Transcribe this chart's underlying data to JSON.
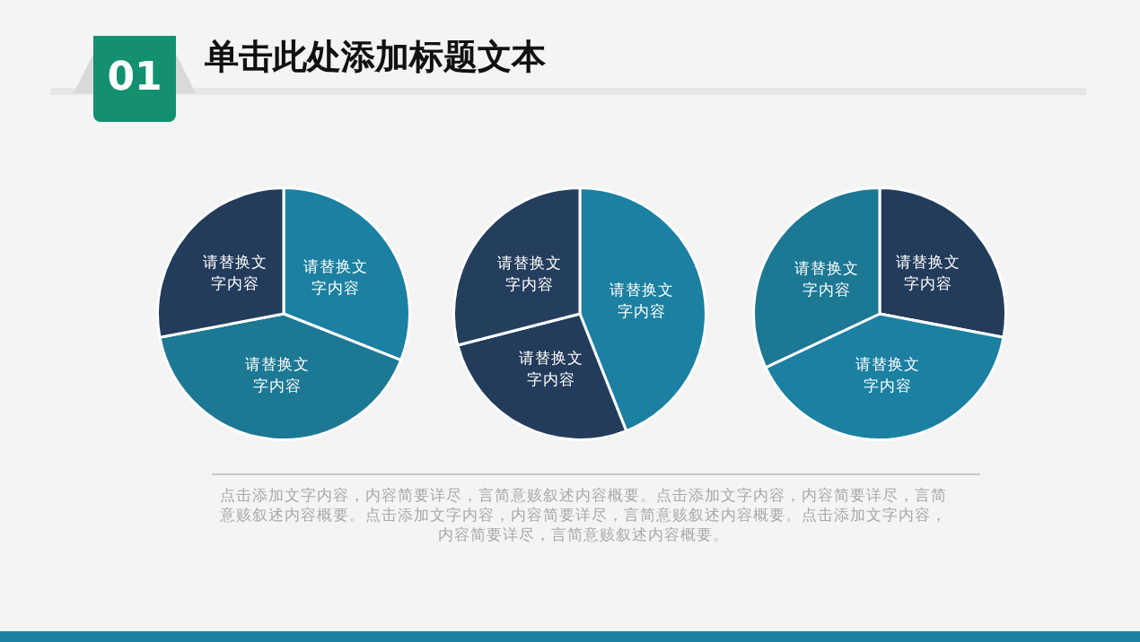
{
  "chart_data": [
    {
      "type": "pie",
      "title": "单击此处添加标题文本",
      "annotations": [
        "01",
        "点击添加文字内容，内容简要详尽，言简意赅叙述内容概要。点击添加文字内容，内容简要详尽，言简意赅叙述内容概要。点击添加文字内容，内容简要详尽，言简意赅叙述内容概要。点击添加文字内容，内容简要详尽，言简意赅叙述内容概要。"
      ],
      "categories": [
        "请替换文字内容",
        "请替换文字内容",
        "请替换文字内容"
      ],
      "values": [
        31,
        41,
        28
      ],
      "colors": [
        "#1b80a2",
        "#1c7893",
        "#233c5c"
      ],
      "legend": false
    },
    {
      "type": "pie",
      "categories": [
        "请替换文字内容",
        "请替换文字内容",
        "请替换文字内容"
      ],
      "values": [
        44,
        27,
        29
      ],
      "colors": [
        "#1b80a2",
        "#233c5c",
        "#243e5e"
      ],
      "legend": false
    },
    {
      "type": "pie",
      "categories": [
        "请替换文字内容",
        "请替换文字内容",
        "请替换文字内容"
      ],
      "values": [
        28,
        40,
        32
      ],
      "colors": [
        "#233c5c",
        "#1b80a2",
        "#1c7893"
      ],
      "legend": false
    }
  ]
}
